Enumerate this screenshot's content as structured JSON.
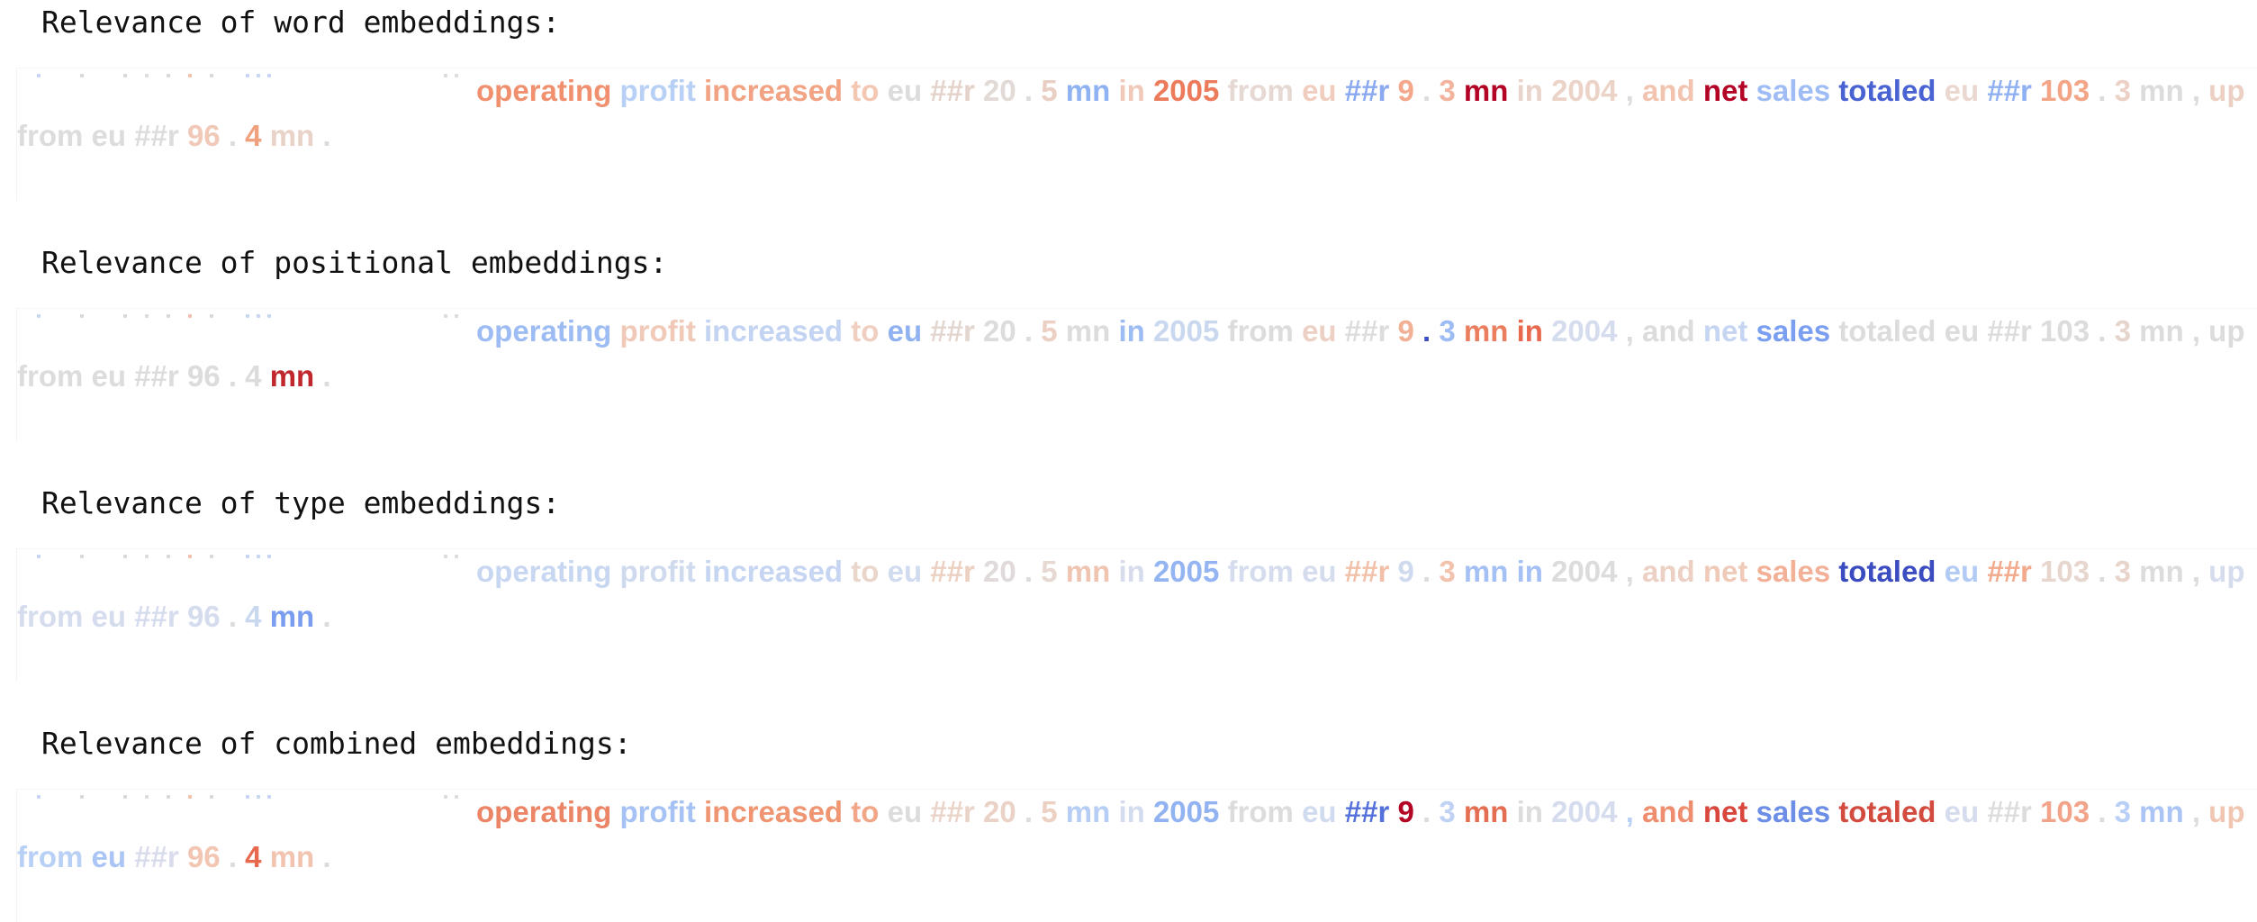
{
  "sections": [
    {
      "heading": "Relevance of word embeddings:",
      "tokens": [
        {
          "t": "operating",
          "c": "#f0906e"
        },
        {
          "t": "profit",
          "c": "#b8cff6"
        },
        {
          "t": "increased",
          "c": "#f2a384"
        },
        {
          "t": "to",
          "c": "#f4c7b3"
        },
        {
          "t": "eu",
          "c": "#dcdcdc"
        },
        {
          "t": "##r",
          "c": "#e4d3cb"
        },
        {
          "t": "20",
          "c": "#e2dad6"
        },
        {
          "t": ".",
          "c": "#dcdcdc"
        },
        {
          "t": "5",
          "c": "#e9cfc3"
        },
        {
          "t": "mn",
          "c": "#8fb2f2"
        },
        {
          "t": "in",
          "c": "#f0c9b9"
        },
        {
          "t": "2005",
          "c": "#ec7b5b"
        },
        {
          "t": "from",
          "c": "#e6d8d2"
        },
        {
          "t": "eu",
          "c": "#f0cdbd"
        },
        {
          "t": "##r",
          "c": "#8aa9f0"
        },
        {
          "t": "9",
          "c": "#f4a78a"
        },
        {
          "t": ".",
          "c": "#dcdcdc"
        },
        {
          "t": "3",
          "c": "#f2b49c"
        },
        {
          "t": "mn",
          "c": "#b40426"
        },
        {
          "t": "in",
          "c": "#e9d4cb"
        },
        {
          "t": "2004",
          "c": "#ecd3c8"
        },
        {
          "t": ",",
          "c": "#dcdcdc"
        },
        {
          "t": "and",
          "c": "#f2c4b0"
        },
        {
          "t": "net",
          "c": "#b40426"
        },
        {
          "t": "sales",
          "c": "#9fbdf4"
        },
        {
          "t": "totaled",
          "c": "#4a63d3"
        },
        {
          "t": "eu",
          "c": "#ead7cf"
        },
        {
          "t": "##r",
          "c": "#8fb0f2"
        },
        {
          "t": "103",
          "c": "#f3a587"
        },
        {
          "t": ".",
          "c": "#dcdcdc"
        },
        {
          "t": "3",
          "c": "#ecd2c6"
        },
        {
          "t": "mn",
          "c": "#dcdcdc"
        },
        {
          "t": ",",
          "c": "#dcdcdc"
        },
        {
          "t": "up",
          "c": "#ecd0c3"
        },
        {
          "t": "from",
          "c": "#dcdcdc"
        },
        {
          "t": "eu",
          "c": "#dcdcdc"
        },
        {
          "t": "##r",
          "c": "#dcdcdc"
        },
        {
          "t": "96",
          "c": "#f0c9b9"
        },
        {
          "t": ".",
          "c": "#dcdcdc"
        },
        {
          "t": "4",
          "c": "#f0a27f"
        },
        {
          "t": "mn",
          "c": "#e9d2c7"
        },
        {
          "t": ".",
          "c": "#dcdcdc"
        }
      ]
    },
    {
      "heading": "Relevance of positional embeddings:",
      "tokens": [
        {
          "t": "operating",
          "c": "#9ebcf4"
        },
        {
          "t": "profit",
          "c": "#f0c9b8"
        },
        {
          "t": "increased",
          "c": "#c3d3f2"
        },
        {
          "t": "to",
          "c": "#f0cfc0"
        },
        {
          "t": "eu",
          "c": "#91b2f1"
        },
        {
          "t": "##r",
          "c": "#e3d6d0"
        },
        {
          "t": "20",
          "c": "#dcdcdc"
        },
        {
          "t": ".",
          "c": "#dcdcdc"
        },
        {
          "t": "5",
          "c": "#ebd0c3"
        },
        {
          "t": "mn",
          "c": "#dcdcdc"
        },
        {
          "t": "in",
          "c": "#9ebcf4"
        },
        {
          "t": "2005",
          "c": "#cad8ef"
        },
        {
          "t": "from",
          "c": "#dcdcdc"
        },
        {
          "t": "eu",
          "c": "#ecd0c3"
        },
        {
          "t": "##r",
          "c": "#dcdcdc"
        },
        {
          "t": "9",
          "c": "#f2b095"
        },
        {
          "t": ".",
          "c": "#3b4cc0"
        },
        {
          "t": "3",
          "c": "#9ebcf4"
        },
        {
          "t": "mn",
          "c": "#ea7e5e"
        },
        {
          "t": "in",
          "c": "#e8694e"
        },
        {
          "t": "2004",
          "c": "#d5dcee"
        },
        {
          "t": ",",
          "c": "#dcdcdc"
        },
        {
          "t": "and",
          "c": "#dcdcdc"
        },
        {
          "t": "net",
          "c": "#c5d5f2"
        },
        {
          "t": "sales",
          "c": "#7b9ff0"
        },
        {
          "t": "totaled",
          "c": "#dcdcdc"
        },
        {
          "t": "eu",
          "c": "#dcdcdc"
        },
        {
          "t": "##r",
          "c": "#dcdcdc"
        },
        {
          "t": "103",
          "c": "#dcdcdc"
        },
        {
          "t": ".",
          "c": "#dcdcdc"
        },
        {
          "t": "3",
          "c": "#e6d5cd"
        },
        {
          "t": "mn",
          "c": "#dcdcdc"
        },
        {
          "t": ",",
          "c": "#dcdcdc"
        },
        {
          "t": "up",
          "c": "#dcdcdc"
        },
        {
          "t": "from",
          "c": "#dcdcdc"
        },
        {
          "t": "eu",
          "c": "#dcdcdc"
        },
        {
          "t": "##r",
          "c": "#dcdcdc"
        },
        {
          "t": "96",
          "c": "#dcdcdc"
        },
        {
          "t": ".",
          "c": "#dcdcdc"
        },
        {
          "t": "4",
          "c": "#dcdcdc"
        },
        {
          "t": "mn",
          "c": "#c0282d"
        },
        {
          "t": ".",
          "c": "#dcdcdc"
        }
      ]
    },
    {
      "heading": "Relevance of type embeddings:",
      "tokens": [
        {
          "t": "operating",
          "c": "#c8d7f1"
        },
        {
          "t": "profit",
          "c": "#cfdaef"
        },
        {
          "t": "increased",
          "c": "#c6d5f1"
        },
        {
          "t": "to",
          "c": "#ead5cb"
        },
        {
          "t": "eu",
          "c": "#d0dbef"
        },
        {
          "t": "##r",
          "c": "#ecd0c2"
        },
        {
          "t": "20",
          "c": "#e0dada"
        },
        {
          "t": ".",
          "c": "#dcdcdc"
        },
        {
          "t": "5",
          "c": "#e6d8d2"
        },
        {
          "t": "mn",
          "c": "#efc5b2"
        },
        {
          "t": "in",
          "c": "#d7dced"
        },
        {
          "t": "2005",
          "c": "#94b5f2"
        },
        {
          "t": "from",
          "c": "#d5dcee"
        },
        {
          "t": "eu",
          "c": "#d5dcee"
        },
        {
          "t": "##r",
          "c": "#f2c0a8"
        },
        {
          "t": "9",
          "c": "#cfdaef"
        },
        {
          "t": ".",
          "c": "#dcdcdc"
        },
        {
          "t": "3",
          "c": "#f2c2ad"
        },
        {
          "t": "mn",
          "c": "#a4c0f4"
        },
        {
          "t": "in",
          "c": "#a4c0f4"
        },
        {
          "t": "2004",
          "c": "#dcdcdc"
        },
        {
          "t": ",",
          "c": "#dcdcdc"
        },
        {
          "t": "and",
          "c": "#ecd0c3"
        },
        {
          "t": "net",
          "c": "#f0cab8"
        },
        {
          "t": "sales",
          "c": "#f2b197"
        },
        {
          "t": "totaled",
          "c": "#3b4cc0"
        },
        {
          "t": "eu",
          "c": "#b2cbf5"
        },
        {
          "t": "##r",
          "c": "#f2a98c"
        },
        {
          "t": "103",
          "c": "#e6d6ce"
        },
        {
          "t": ".",
          "c": "#dcdcdc"
        },
        {
          "t": "3",
          "c": "#e8d4ca"
        },
        {
          "t": "mn",
          "c": "#dcdcdc"
        },
        {
          "t": ",",
          "c": "#dcdcdc"
        },
        {
          "t": "up",
          "c": "#d5dcee"
        },
        {
          "t": "from",
          "c": "#d5dcee"
        },
        {
          "t": "eu",
          "c": "#d5dcee"
        },
        {
          "t": "##r",
          "c": "#d5dcee"
        },
        {
          "t": "96",
          "c": "#d5dcee"
        },
        {
          "t": ".",
          "c": "#dcdcdc"
        },
        {
          "t": "4",
          "c": "#cad8ef"
        },
        {
          "t": "mn",
          "c": "#7a9df0"
        },
        {
          "t": ".",
          "c": "#dcdcdc"
        }
      ]
    },
    {
      "heading": "Relevance of combined embeddings:",
      "tokens": [
        {
          "t": "operating",
          "c": "#ec8466"
        },
        {
          "t": "profit",
          "c": "#a6c2f4"
        },
        {
          "t": "increased",
          "c": "#f09572"
        },
        {
          "t": "to",
          "c": "#f2a688"
        },
        {
          "t": "eu",
          "c": "#dcdcdc"
        },
        {
          "t": "##r",
          "c": "#ead4c9"
        },
        {
          "t": "20",
          "c": "#ead2c6"
        },
        {
          "t": ".",
          "c": "#dcdcdc"
        },
        {
          "t": "5",
          "c": "#ecd0c2"
        },
        {
          "t": "mn",
          "c": "#b6cdf5"
        },
        {
          "t": "in",
          "c": "#d3dbee"
        },
        {
          "t": "2005",
          "c": "#92b3f1"
        },
        {
          "t": "from",
          "c": "#dcdcdc"
        },
        {
          "t": "eu",
          "c": "#d0dbef"
        },
        {
          "t": "##r",
          "c": "#5470da"
        },
        {
          "t": "9",
          "c": "#b40426"
        },
        {
          "t": ".",
          "c": "#dcdcdc"
        },
        {
          "t": "3",
          "c": "#c0d2f3"
        },
        {
          "t": "mn",
          "c": "#e46e52"
        },
        {
          "t": "in",
          "c": "#dcdcdc"
        },
        {
          "t": "2004",
          "c": "#d5dcee"
        },
        {
          "t": ",",
          "c": "#b8cff6"
        },
        {
          "t": "and",
          "c": "#ef8e6e"
        },
        {
          "t": "net",
          "c": "#d8463c"
        },
        {
          "t": "sales",
          "c": "#6c8ee6"
        },
        {
          "t": "totaled",
          "c": "#d34a3e"
        },
        {
          "t": "eu",
          "c": "#d5dcee"
        },
        {
          "t": "##r",
          "c": "#dcdcdc"
        },
        {
          "t": "103",
          "c": "#f2a48a"
        },
        {
          "t": ".",
          "c": "#dcdcdc"
        },
        {
          "t": "3",
          "c": "#b8cff6"
        },
        {
          "t": "mn",
          "c": "#a9c4f5"
        },
        {
          "t": ",",
          "c": "#dcdcdc"
        },
        {
          "t": "up",
          "c": "#f0c6b2"
        },
        {
          "t": "from",
          "c": "#b8cff6"
        },
        {
          "t": "eu",
          "c": "#a9c4f5"
        },
        {
          "t": "##r",
          "c": "#d8dced"
        },
        {
          "t": "96",
          "c": "#f2c6b2"
        },
        {
          "t": ".",
          "c": "#dcdcdc"
        },
        {
          "t": "4",
          "c": "#e8694e"
        },
        {
          "t": "mn",
          "c": "#f2c3ae"
        },
        {
          "t": ".",
          "c": "#dcdcdc"
        }
      ]
    }
  ]
}
